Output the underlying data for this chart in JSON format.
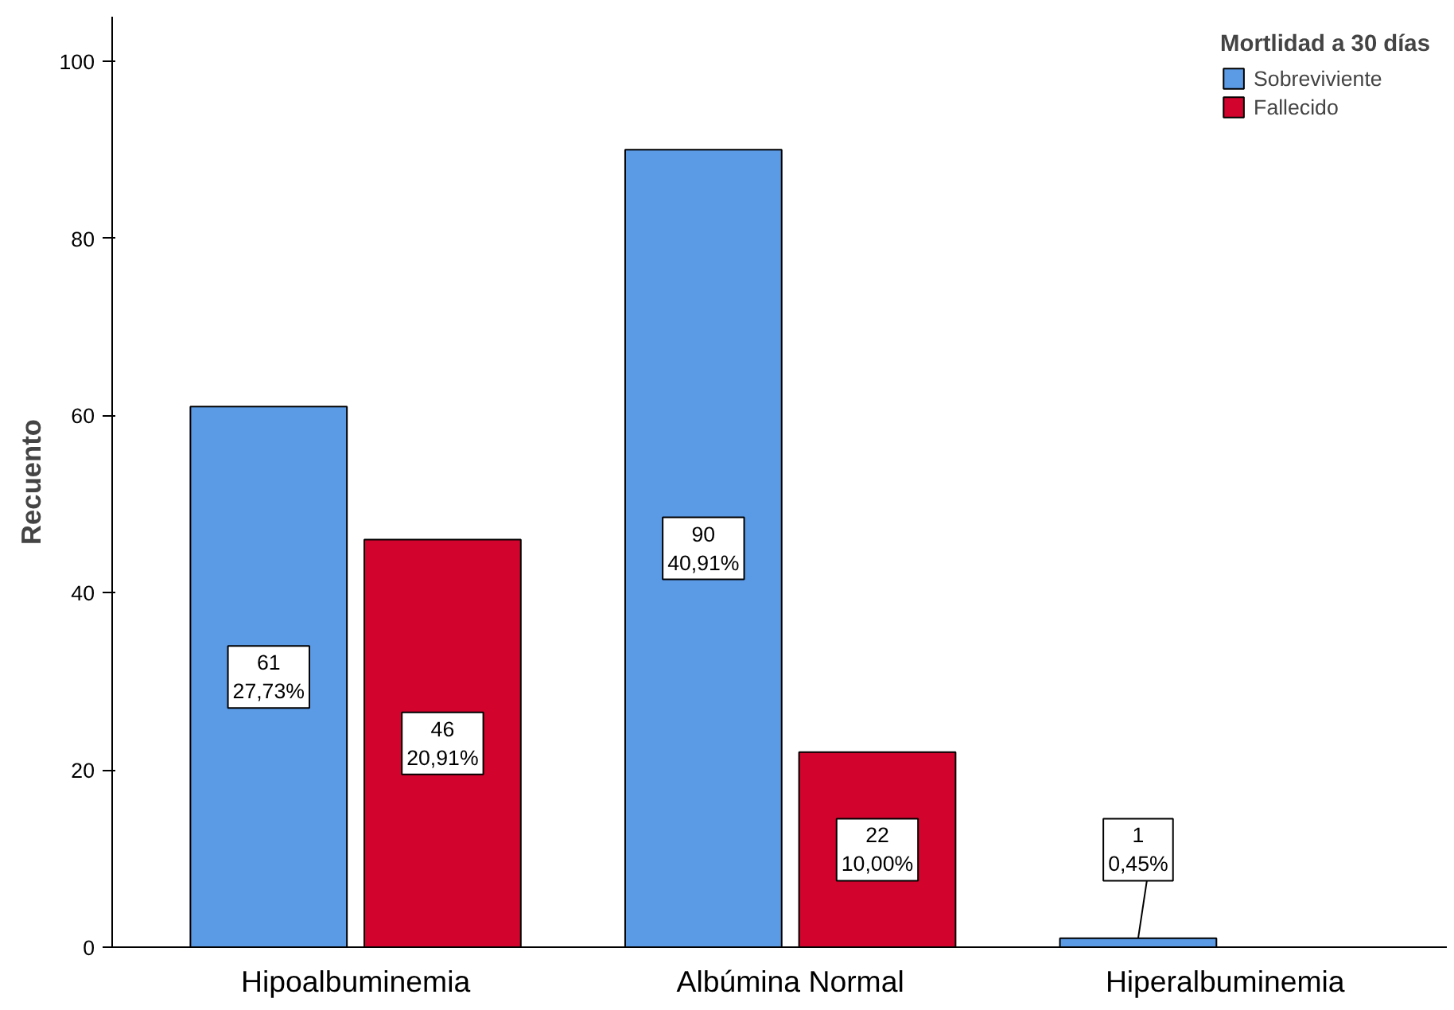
{
  "chart_data": {
    "type": "bar",
    "ylabel": "Recuento",
    "legend_title": "Mortlidad a 30 días",
    "categories": [
      "Hipoalbuminemia",
      "Albúmina Normal",
      "Hiperalbuminemia"
    ],
    "series": [
      {
        "name": "Sobreviviente",
        "color": "#5b9be6",
        "values": [
          61,
          90,
          1
        ],
        "value_labels": [
          "61\n27,73%",
          "90\n40,91%",
          "1\n0,45%"
        ]
      },
      {
        "name": "Fallecido",
        "color": "#d2042d",
        "values": [
          46,
          22,
          null
        ],
        "value_labels": [
          "46\n20,91%",
          "22\n10,00%",
          null
        ]
      }
    ],
    "ylim": [
      0,
      105
    ],
    "yticks": [
      0,
      20,
      40,
      60,
      80,
      100
    ],
    "grid": false,
    "legend": "top right"
  }
}
